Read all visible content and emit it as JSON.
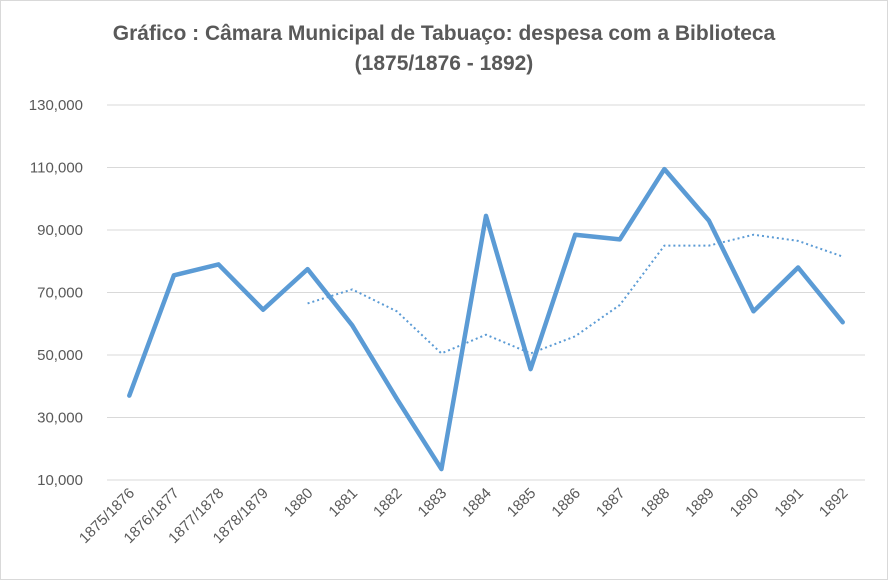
{
  "chart_data": {
    "type": "line",
    "title_line1": "Gráfico : Câmara Municipal de Tabuaço: despesa com a Biblioteca",
    "title_line2": "(1875/1876 - 1892)",
    "xlabel": "",
    "ylabel": "",
    "ylim": [
      10000,
      130000
    ],
    "y_ticks": [
      10000,
      30000,
      50000,
      70000,
      90000,
      110000,
      130000
    ],
    "y_tick_labels": [
      "10,000",
      "30,000",
      "50,000",
      "70,000",
      "90,000",
      "110,000",
      "130,000"
    ],
    "grid": true,
    "legend": "none",
    "categories": [
      "1875/1876",
      "1876/1877",
      "1877/1878",
      "1878/1879",
      "1880",
      "1881",
      "1882",
      "1883",
      "1884",
      "1885",
      "1886",
      "1887",
      "1888",
      "1889",
      "1890",
      "1891",
      "1892"
    ],
    "series": [
      {
        "style": "solid",
        "color": "#5b9bd5",
        "values": [
          37000,
          75500,
          79000,
          64500,
          77500,
          59500,
          36000,
          13500,
          94500,
          45500,
          88500,
          87000,
          109500,
          93000,
          64000,
          78000,
          60500
        ]
      },
      {
        "style": "dotted",
        "color": "#5b9bd5",
        "values": [
          null,
          null,
          null,
          null,
          66500,
          71000,
          64000,
          50500,
          56500,
          50500,
          56000,
          66000,
          85000,
          85000,
          88500,
          86500,
          81500
        ]
      }
    ]
  }
}
